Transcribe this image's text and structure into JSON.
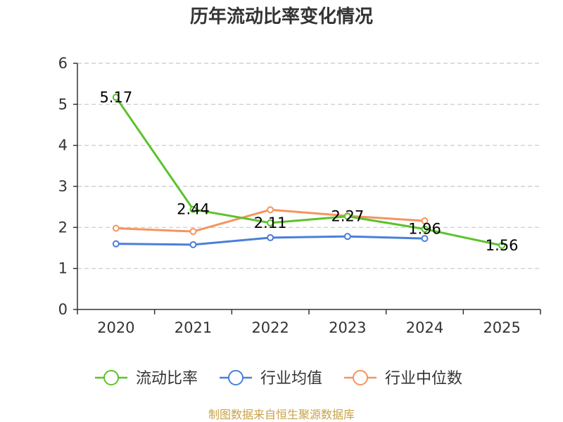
{
  "chart_data": {
    "type": "line",
    "title": "历年流动比率变化情况",
    "categories": [
      "2020",
      "2021",
      "2022",
      "2023",
      "2024",
      "2025"
    ],
    "y_ticks": [
      "0",
      "1",
      "2",
      "3",
      "4",
      "5",
      "6"
    ],
    "ylim": [
      0,
      6
    ],
    "grid": true,
    "legend_position": "bottom",
    "series": [
      {
        "name": "流动比率",
        "color": "#5cc22b",
        "values": [
          5.17,
          2.44,
          2.11,
          2.27,
          1.96,
          1.56
        ],
        "labels": [
          "5.17",
          "2.44",
          "2.11",
          "2.27",
          "1.96",
          "1.56"
        ]
      },
      {
        "name": "行业均值",
        "color": "#4a7fd9",
        "values": [
          1.6,
          1.58,
          1.75,
          1.78,
          1.73,
          null
        ]
      },
      {
        "name": "行业中位数",
        "color": "#f5945f",
        "values": [
          1.98,
          1.9,
          2.43,
          2.28,
          2.16,
          null
        ]
      }
    ],
    "source": "制图数据来自恒生聚源数据库"
  }
}
